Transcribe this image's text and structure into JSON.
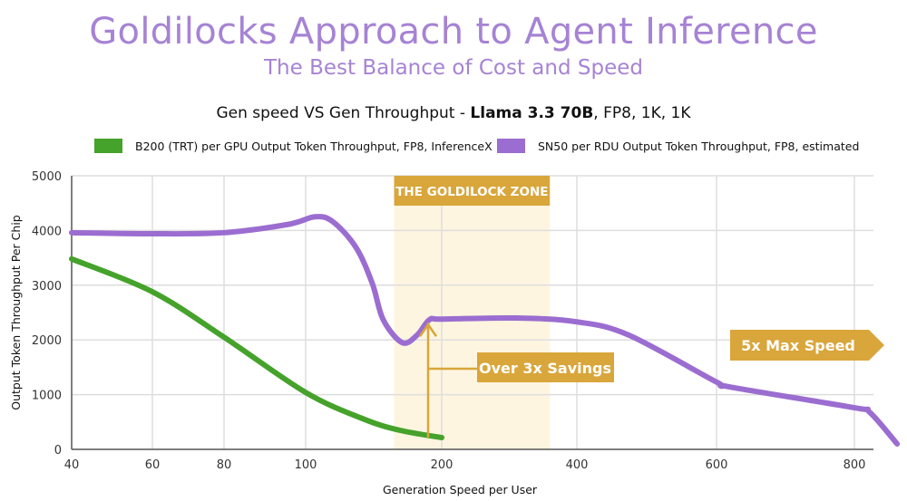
{
  "header": {
    "title": "Goldilocks Approach to Agent Inference",
    "subtitle": "The Best Balance of Cost and Speed",
    "chart_title_prefix": "Gen speed VS Gen Throughput - ",
    "chart_title_bold": "Llama 3.3 70B",
    "chart_title_suffix": ", FP8, 1K, 1K"
  },
  "colors": {
    "title": "#a683d4",
    "purple": "#9b6dd0",
    "green": "#45a22b",
    "gold": "#d9a63b",
    "zone": "#fdf5df"
  },
  "chart_data": {
    "type": "line",
    "title": "Gen speed VS Gen Throughput - Llama 3.3 70B, FP8, 1K, 1K",
    "xlabel": "Generation Speed per User",
    "ylabel": "Output Token Throughput Per Chip",
    "x_ticks": [
      40,
      60,
      80,
      100,
      200,
      400,
      600,
      800
    ],
    "x_scale": "non-uniform (ticks equally spaced by category)",
    "y_ticks": [
      0,
      1000,
      2000,
      3000,
      4000,
      5000
    ],
    "ylim": [
      0,
      5000
    ],
    "grid": true,
    "legend_position": "top",
    "series": [
      {
        "name": "B200 (TRT) per GPU Output Token Throughput, FP8, InferenceX",
        "color": "green",
        "x": [
          40,
          60,
          80,
          100,
          142,
          169,
          200
        ],
        "y": [
          3480,
          2880,
          2050,
          1040,
          560,
          350,
          215
        ]
      },
      {
        "name": "SN50 per RDU Output Token Throughput, FP8, estimated",
        "color": "purple",
        "x": [
          40,
          60,
          80,
          95.6,
          107,
          120,
          137,
          149,
          157,
          171,
          182,
          191,
          201,
          310,
          400,
          474,
          600,
          620,
          800,
          822,
          862
        ],
        "y": [
          3960,
          3940,
          3960,
          4110,
          4250,
          4160,
          3690,
          3030,
          2370,
          1950,
          2090,
          2370,
          2380,
          2400,
          2330,
          2090,
          1230,
          1140,
          760,
          680,
          100
        ]
      }
    ],
    "annotations": {
      "zone": {
        "label": "THE GOLDILOCK ZONE",
        "x_range": [
          165,
          360
        ]
      },
      "savings": {
        "label": "Over 3x Savings",
        "x": 190,
        "from": 215,
        "to": 2380
      },
      "speed": {
        "label": "5x Max Speed"
      }
    }
  }
}
